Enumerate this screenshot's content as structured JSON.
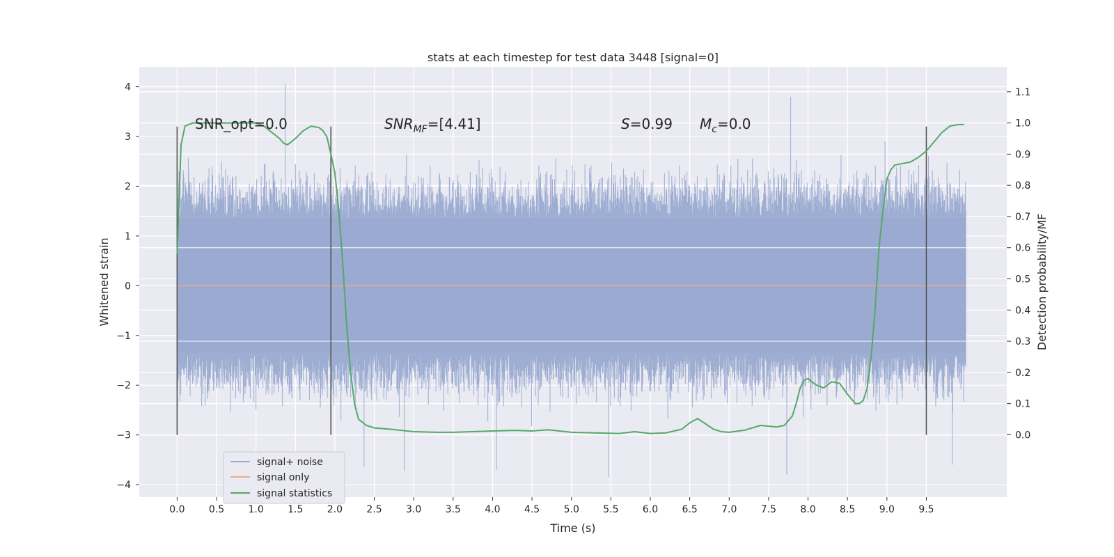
{
  "chart_data": {
    "type": "line",
    "title": "stats at each timestep for test data 3448 [signal=0]",
    "xlabel": "Time (s)",
    "ylabel": "Whitened strain",
    "ylabel_right": "Detection probability/MF",
    "xlim": [
      -0.48,
      10.52
    ],
    "ylim": [
      -4.25,
      4.4
    ],
    "ylim_right": [
      -0.2,
      1.18
    ],
    "x_ticks": [
      0.0,
      0.5,
      1.0,
      1.5,
      2.0,
      2.5,
      3.0,
      3.5,
      4.0,
      4.5,
      5.0,
      5.5,
      6.0,
      6.5,
      7.0,
      7.5,
      8.0,
      8.5,
      9.0,
      9.5
    ],
    "x_tick_labels": [
      "0.0",
      "0.5",
      "1.0",
      "1.5",
      "2.0",
      "2.5",
      "3.0",
      "3.5",
      "4.0",
      "4.5",
      "5.0",
      "5.5",
      "6.0",
      "6.5",
      "7.0",
      "7.5",
      "8.0",
      "8.5",
      "9.0",
      "9.5"
    ],
    "y_ticks": [
      -4,
      -3,
      -2,
      -1,
      0,
      1,
      2,
      3,
      4
    ],
    "y_tick_labels": [
      "−4",
      "−3",
      "−2",
      "−1",
      "0",
      "1",
      "2",
      "3",
      "4"
    ],
    "y_right_ticks": [
      0.0,
      0.1,
      0.2,
      0.3,
      0.4,
      0.5,
      0.6,
      0.7,
      0.8,
      0.9,
      1.0,
      1.1
    ],
    "y_right_tick_labels": [
      "0.0",
      "0.1",
      "0.2",
      "0.3",
      "0.4",
      "0.5",
      "0.6",
      "0.7",
      "0.8",
      "0.9",
      "1.0",
      "1.1"
    ],
    "grid": true,
    "legend_position": "bottom-left",
    "annotations": {
      "snr_opt": "SNR_opt=0.0",
      "snr_mf_base": "SNR",
      "snr_mf_sub": "MF",
      "snr_mf_value": "=[4.41]",
      "s_symbol": "S",
      "s_value": "=0.99",
      "mc_symbol": "M",
      "mc_sub": "c",
      "mc_value": "=0.0"
    },
    "vertical_markers": {
      "x": [
        0.0,
        1.95,
        9.5
      ],
      "y_range": [
        -3.0,
        3.2
      ],
      "color": "#555555"
    },
    "series": [
      {
        "name": "signal+ noise",
        "color": "#9aaad0",
        "description_range": [
          0.0,
          10.0
        ],
        "band_core": [
          -1.35,
          1.35
        ],
        "typical_extremes": [
          -2.7,
          2.7
        ],
        "notable_peaks": [
          {
            "x": 1.37,
            "y": 4.05
          },
          {
            "x": 7.78,
            "y": 3.8
          },
          {
            "x": 7.73,
            "y": -3.8
          },
          {
            "x": 5.47,
            "y": -3.85
          },
          {
            "x": 2.88,
            "y": -3.72
          },
          {
            "x": 9.83,
            "y": -3.6
          },
          {
            "x": 2.37,
            "y": -3.65
          },
          {
            "x": 4.05,
            "y": -3.7
          }
        ]
      },
      {
        "name": "signal only",
        "color": "#e8a990",
        "x_range": [
          0.0,
          10.0
        ],
        "y": 0.0
      },
      {
        "name": "signal statistics",
        "color": "#55a868",
        "axis": "right",
        "x": [
          0.0,
          0.05,
          0.1,
          0.15,
          0.2,
          0.3,
          0.5,
          0.7,
          0.9,
          1.0,
          1.1,
          1.2,
          1.3,
          1.35,
          1.4,
          1.5,
          1.6,
          1.7,
          1.8,
          1.85,
          1.9,
          1.95,
          2.0,
          2.05,
          2.1,
          2.15,
          2.2,
          2.25,
          2.3,
          2.4,
          2.5,
          2.7,
          3.0,
          3.3,
          3.5,
          4.0,
          4.3,
          4.5,
          4.7,
          5.0,
          5.3,
          5.6,
          5.8,
          6.0,
          6.2,
          6.4,
          6.5,
          6.6,
          6.7,
          6.8,
          6.9,
          7.0,
          7.2,
          7.4,
          7.6,
          7.7,
          7.8,
          7.85,
          7.9,
          7.95,
          8.0,
          8.1,
          8.2,
          8.3,
          8.4,
          8.5,
          8.6,
          8.65,
          8.7,
          8.75,
          8.8,
          8.85,
          8.9,
          8.95,
          9.0,
          9.05,
          9.1,
          9.2,
          9.3,
          9.4,
          9.5,
          9.6,
          9.7,
          9.8,
          9.9,
          9.98
        ],
        "y": [
          0.58,
          0.93,
          0.99,
          0.995,
          1.0,
          1.0,
          1.0,
          1.0,
          1.0,
          1.0,
          0.99,
          0.97,
          0.95,
          0.935,
          0.93,
          0.95,
          0.975,
          0.99,
          0.985,
          0.975,
          0.955,
          0.9,
          0.84,
          0.72,
          0.55,
          0.35,
          0.2,
          0.1,
          0.05,
          0.03,
          0.022,
          0.018,
          0.01,
          0.008,
          0.008,
          0.012,
          0.014,
          0.012,
          0.016,
          0.008,
          0.006,
          0.004,
          0.01,
          0.004,
          0.006,
          0.018,
          0.038,
          0.052,
          0.035,
          0.018,
          0.01,
          0.008,
          0.015,
          0.03,
          0.025,
          0.03,
          0.06,
          0.1,
          0.15,
          0.175,
          0.18,
          0.16,
          0.15,
          0.17,
          0.165,
          0.13,
          0.1,
          0.1,
          0.11,
          0.15,
          0.25,
          0.4,
          0.6,
          0.72,
          0.82,
          0.85,
          0.865,
          0.87,
          0.875,
          0.89,
          0.91,
          0.94,
          0.97,
          0.99,
          0.995,
          0.995
        ]
      }
    ]
  }
}
